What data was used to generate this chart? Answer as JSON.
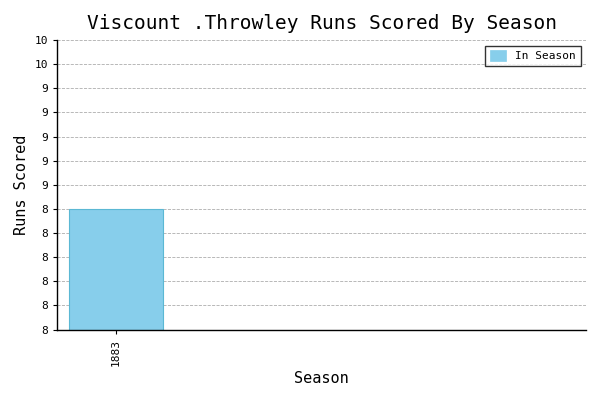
{
  "title": "Viscount .Throwley Runs Scored By Season",
  "xlabel": "Season",
  "ylabel": "Runs Scored",
  "bar_x": [
    1883
  ],
  "bar_value": 9,
  "bar_color": "#87CEEB",
  "bar_edgecolor": "#5BB8D4",
  "bar_width": 0.8,
  "ymin": 8.0,
  "ymax": 10.4,
  "ytick_step": 0.2,
  "xmin": 1882.5,
  "xmax": 1887.0,
  "background_color": "#ffffff",
  "grid_color": "#999999",
  "legend_label": "In Season",
  "title_fontsize": 14,
  "axis_fontsize": 11,
  "tick_fontsize": 8,
  "font_family": "monospace"
}
